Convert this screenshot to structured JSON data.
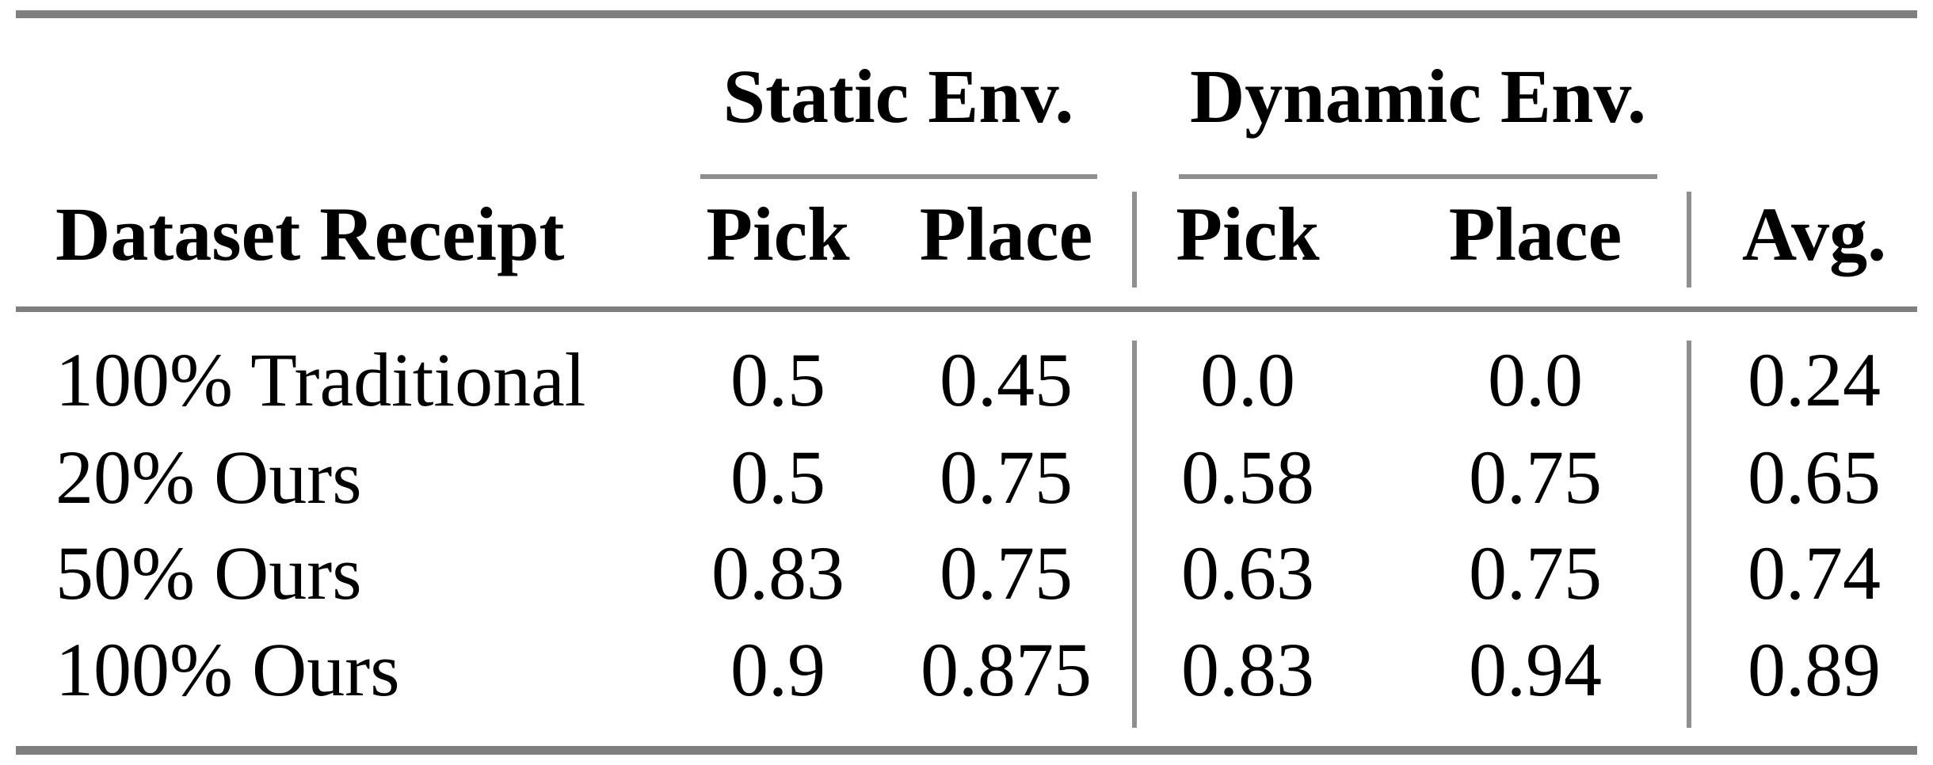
{
  "colors": {
    "rule": "#7f7f7f",
    "light-rule": "#8f8f8f",
    "text": "#000000",
    "background": "#ffffff"
  },
  "table": {
    "groups": [
      {
        "label": "Static Env.",
        "columns": [
          "Pick",
          "Place"
        ]
      },
      {
        "label": "Dynamic Env.",
        "columns": [
          "Pick",
          "Place"
        ]
      }
    ],
    "columns": [
      "Dataset Receipt",
      "Pick",
      "Place",
      "Pick",
      "Place",
      "Avg."
    ],
    "rows": [
      {
        "label": "100% Traditional",
        "values": [
          "0.5",
          "0.45",
          "0.0",
          "0.0",
          "0.24"
        ]
      },
      {
        "label": "20% Ours",
        "values": [
          "0.5",
          "0.75",
          "0.58",
          "0.75",
          "0.65"
        ]
      },
      {
        "label": "50% Ours",
        "values": [
          "0.83",
          "0.75",
          "0.63",
          "0.75",
          "0.74"
        ]
      },
      {
        "label": "100% Ours",
        "values": [
          "0.9",
          "0.875",
          "0.83",
          "0.94",
          "0.89"
        ]
      }
    ]
  }
}
